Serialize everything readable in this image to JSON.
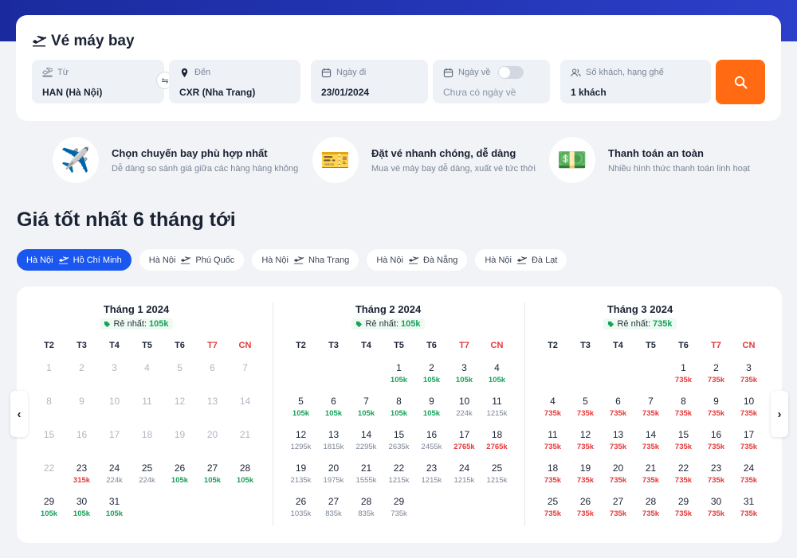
{
  "search": {
    "title": "Vé máy bay",
    "from_label": "Từ",
    "from_value": "HAN (Hà Nội)",
    "to_label": "Đến",
    "to_value": "CXR (Nha Trang)",
    "depart_label": "Ngày đi",
    "depart_value": "23/01/2024",
    "return_label": "Ngày về",
    "return_placeholder": "Chưa có ngày về",
    "pax_label": "Số khách, hạng ghế",
    "pax_value": "1 khách",
    "swap_glyph": "⇋"
  },
  "features": [
    {
      "title": "Chọn chuyến bay phù hợp nhất",
      "desc": "Dễ dàng so sánh giá giữa các hàng hàng không",
      "icon": "airplane-icon"
    },
    {
      "title": "Đặt vé nhanh chóng, dễ dàng",
      "desc": "Mua vé máy bay dễ dàng, xuất vé tức thời",
      "icon": "ticket-icon"
    },
    {
      "title": "Thanh toán an toàn",
      "desc": "Nhiều hình thức thanh toán linh hoạt",
      "icon": "cash-icon"
    }
  ],
  "section_title": "Giá tốt nhất 6 tháng tới",
  "routes": [
    {
      "from": "Hà Nội",
      "to": "Hồ Chí Minh",
      "active": true
    },
    {
      "from": "Hà Nội",
      "to": "Phú Quốc",
      "active": false
    },
    {
      "from": "Hà Nội",
      "to": "Nha Trang",
      "active": false
    },
    {
      "from": "Hà Nội",
      "to": "Đà Nẵng",
      "active": false
    },
    {
      "from": "Hà Nội",
      "to": "Đà Lạt",
      "active": false
    }
  ],
  "weekdays": [
    "T2",
    "T3",
    "T4",
    "T5",
    "T6",
    "T7",
    "CN"
  ],
  "cheapest_label": "Rẻ nhất:",
  "colors": {
    "green": "#19a05a",
    "red": "#e5393b",
    "gray": "#7b8596",
    "accent": "#1a56f0",
    "search_button": "#ff6a13"
  },
  "months": [
    {
      "title": "Tháng 1 2024",
      "cheapest": "105k",
      "offset": 0,
      "days": [
        {
          "d": "1",
          "past": true
        },
        {
          "d": "2",
          "past": true
        },
        {
          "d": "3",
          "past": true
        },
        {
          "d": "4",
          "past": true
        },
        {
          "d": "5",
          "past": true
        },
        {
          "d": "6",
          "past": true
        },
        {
          "d": "7",
          "past": true
        },
        {
          "d": "8",
          "past": true
        },
        {
          "d": "9",
          "past": true
        },
        {
          "d": "10",
          "past": true
        },
        {
          "d": "11",
          "past": true
        },
        {
          "d": "12",
          "past": true
        },
        {
          "d": "13",
          "past": true
        },
        {
          "d": "14",
          "past": true
        },
        {
          "d": "15",
          "past": true
        },
        {
          "d": "16",
          "past": true
        },
        {
          "d": "17",
          "past": true
        },
        {
          "d": "18",
          "past": true
        },
        {
          "d": "19",
          "past": true
        },
        {
          "d": "20",
          "past": true
        },
        {
          "d": "21",
          "past": true
        },
        {
          "d": "22",
          "past": true
        },
        {
          "d": "23",
          "p": "315k",
          "c": "red"
        },
        {
          "d": "24",
          "p": "224k",
          "c": "gray"
        },
        {
          "d": "25",
          "p": "224k",
          "c": "gray"
        },
        {
          "d": "26",
          "p": "105k",
          "c": "green"
        },
        {
          "d": "27",
          "p": "105k",
          "c": "green"
        },
        {
          "d": "28",
          "p": "105k",
          "c": "green"
        },
        {
          "d": "29",
          "p": "105k",
          "c": "green"
        },
        {
          "d": "30",
          "p": "105k",
          "c": "green"
        },
        {
          "d": "31",
          "p": "105k",
          "c": "green"
        }
      ]
    },
    {
      "title": "Tháng 2 2024",
      "cheapest": "105k",
      "offset": 3,
      "days": [
        {
          "d": "1",
          "p": "105k",
          "c": "green"
        },
        {
          "d": "2",
          "p": "105k",
          "c": "green"
        },
        {
          "d": "3",
          "p": "105k",
          "c": "green"
        },
        {
          "d": "4",
          "p": "105k",
          "c": "green"
        },
        {
          "d": "5",
          "p": "105k",
          "c": "green"
        },
        {
          "d": "6",
          "p": "105k",
          "c": "green"
        },
        {
          "d": "7",
          "p": "105k",
          "c": "green"
        },
        {
          "d": "8",
          "p": "105k",
          "c": "green"
        },
        {
          "d": "9",
          "p": "105k",
          "c": "green"
        },
        {
          "d": "10",
          "p": "224k",
          "c": "gray"
        },
        {
          "d": "11",
          "p": "1215k",
          "c": "gray"
        },
        {
          "d": "12",
          "p": "1295k",
          "c": "gray"
        },
        {
          "d": "13",
          "p": "1815k",
          "c": "gray"
        },
        {
          "d": "14",
          "p": "2295k",
          "c": "gray"
        },
        {
          "d": "15",
          "p": "2635k",
          "c": "gray"
        },
        {
          "d": "16",
          "p": "2455k",
          "c": "gray"
        },
        {
          "d": "17",
          "p": "2765k",
          "c": "red"
        },
        {
          "d": "18",
          "p": "2765k",
          "c": "red"
        },
        {
          "d": "19",
          "p": "2135k",
          "c": "gray"
        },
        {
          "d": "20",
          "p": "1975k",
          "c": "gray"
        },
        {
          "d": "21",
          "p": "1555k",
          "c": "gray"
        },
        {
          "d": "22",
          "p": "1215k",
          "c": "gray"
        },
        {
          "d": "23",
          "p": "1215k",
          "c": "gray"
        },
        {
          "d": "24",
          "p": "1215k",
          "c": "gray"
        },
        {
          "d": "25",
          "p": "1215k",
          "c": "gray"
        },
        {
          "d": "26",
          "p": "1035k",
          "c": "gray"
        },
        {
          "d": "27",
          "p": "835k",
          "c": "gray"
        },
        {
          "d": "28",
          "p": "835k",
          "c": "gray"
        },
        {
          "d": "29",
          "p": "735k",
          "c": "gray"
        }
      ]
    },
    {
      "title": "Tháng 3 2024",
      "cheapest": "735k",
      "offset": 4,
      "days": [
        {
          "d": "1",
          "p": "735k",
          "c": "red"
        },
        {
          "d": "2",
          "p": "735k",
          "c": "red"
        },
        {
          "d": "3",
          "p": "735k",
          "c": "red"
        },
        {
          "d": "4",
          "p": "735k",
          "c": "red"
        },
        {
          "d": "5",
          "p": "735k",
          "c": "red"
        },
        {
          "d": "6",
          "p": "735k",
          "c": "red"
        },
        {
          "d": "7",
          "p": "735k",
          "c": "red"
        },
        {
          "d": "8",
          "p": "735k",
          "c": "red"
        },
        {
          "d": "9",
          "p": "735k",
          "c": "red"
        },
        {
          "d": "10",
          "p": "735k",
          "c": "red"
        },
        {
          "d": "11",
          "p": "735k",
          "c": "red"
        },
        {
          "d": "12",
          "p": "735k",
          "c": "red"
        },
        {
          "d": "13",
          "p": "735k",
          "c": "red"
        },
        {
          "d": "14",
          "p": "735k",
          "c": "red"
        },
        {
          "d": "15",
          "p": "735k",
          "c": "red"
        },
        {
          "d": "16",
          "p": "735k",
          "c": "red"
        },
        {
          "d": "17",
          "p": "735k",
          "c": "red"
        },
        {
          "d": "18",
          "p": "735k",
          "c": "red"
        },
        {
          "d": "19",
          "p": "735k",
          "c": "red"
        },
        {
          "d": "20",
          "p": "735k",
          "c": "red"
        },
        {
          "d": "21",
          "p": "735k",
          "c": "red"
        },
        {
          "d": "22",
          "p": "735k",
          "c": "red"
        },
        {
          "d": "23",
          "p": "735k",
          "c": "red"
        },
        {
          "d": "24",
          "p": "735k",
          "c": "red"
        },
        {
          "d": "25",
          "p": "735k",
          "c": "red"
        },
        {
          "d": "26",
          "p": "735k",
          "c": "red"
        },
        {
          "d": "27",
          "p": "735k",
          "c": "red"
        },
        {
          "d": "28",
          "p": "735k",
          "c": "red"
        },
        {
          "d": "29",
          "p": "735k",
          "c": "red"
        },
        {
          "d": "30",
          "p": "735k",
          "c": "red"
        },
        {
          "d": "31",
          "p": "735k",
          "c": "red"
        }
      ]
    }
  ],
  "nav": {
    "prev": "‹",
    "next": "›"
  }
}
